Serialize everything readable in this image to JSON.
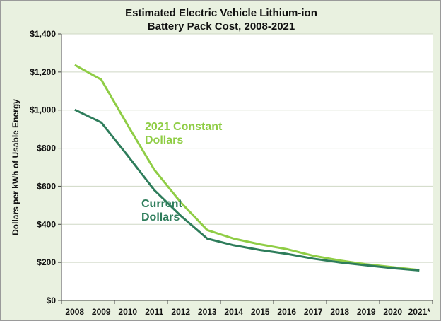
{
  "chart_data": {
    "type": "line",
    "title": [
      "Estimated Electric Vehicle Lithium-ion",
      "Battery Pack Cost, 2008-2021"
    ],
    "xlabel": "",
    "ylabel": "Dollars per kWh of Usable Energy",
    "categories": [
      "2008",
      "2009",
      "2010",
      "2011",
      "2012",
      "2013",
      "2014",
      "2015",
      "2016",
      "2017",
      "2018",
      "2019",
      "2020",
      "2021*"
    ],
    "ylim": [
      0,
      1400
    ],
    "yticks": [
      0,
      200,
      400,
      600,
      800,
      1000,
      1200,
      1400
    ],
    "ytick_labels": [
      "$0",
      "$200",
      "$400",
      "$600",
      "$800",
      "$1,000",
      "$1,200",
      "$1,400"
    ],
    "grid": true,
    "series": [
      {
        "name": "2021 Constant Dollars",
        "label_lines": [
          "2021 Constant",
          "Dollars"
        ],
        "color": "#8fcd45",
        "values": [
          1237,
          1160,
          920,
          687,
          515,
          370,
          325,
          295,
          270,
          235,
          210,
          190,
          175,
          160
        ]
      },
      {
        "name": "Current Dollars",
        "label_lines": [
          "Current",
          "Dollars"
        ],
        "color": "#2e7d5b",
        "values": [
          1002,
          935,
          760,
          580,
          445,
          325,
          290,
          265,
          245,
          220,
          200,
          185,
          170,
          158
        ]
      }
    ]
  }
}
